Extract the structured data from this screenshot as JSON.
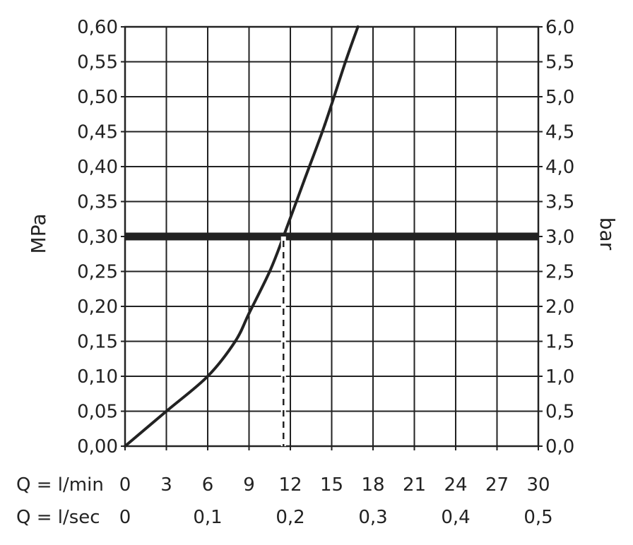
{
  "chart_data": {
    "type": "line",
    "ylabel_left": "MPa",
    "ylabel_right": "bar",
    "ylim": [
      0,
      0.6
    ],
    "xlim": [
      0,
      30
    ],
    "grid": true,
    "y_ticks_left": [
      "0,00",
      "0,05",
      "0,10",
      "0,15",
      "0,20",
      "0,25",
      "0,30",
      "0,35",
      "0,40",
      "0,45",
      "0,50",
      "0,55",
      "0,60"
    ],
    "y_ticks_right": [
      "0,0",
      "0,5",
      "1,0",
      "1,5",
      "2,0",
      "2,5",
      "3,0",
      "3,5",
      "4,0",
      "4,5",
      "5,0",
      "5,5",
      "6,0"
    ],
    "x_rows": [
      {
        "label": "Q = l/min",
        "ticks": [
          {
            "x": 0,
            "text": "0"
          },
          {
            "x": 3,
            "text": "3"
          },
          {
            "x": 6,
            "text": "6"
          },
          {
            "x": 9,
            "text": "9"
          },
          {
            "x": 12,
            "text": "12"
          },
          {
            "x": 15,
            "text": "15"
          },
          {
            "x": 18,
            "text": "18"
          },
          {
            "x": 21,
            "text": "21"
          },
          {
            "x": 24,
            "text": "24"
          },
          {
            "x": 27,
            "text": "27"
          },
          {
            "x": 30,
            "text": "30"
          }
        ]
      },
      {
        "label": "Q = l/sec",
        "ticks": [
          {
            "x": 0,
            "text": "0"
          },
          {
            "x": 6,
            "text": "0,1"
          },
          {
            "x": 12,
            "text": "0,2"
          },
          {
            "x": 18,
            "text": "0,3"
          },
          {
            "x": 24,
            "text": "0,4"
          },
          {
            "x": 30,
            "text": "0,5"
          }
        ]
      }
    ],
    "series": [
      {
        "x": [
          0,
          3,
          6,
          8,
          9,
          10.5,
          11.5,
          13,
          14.5,
          16,
          16.9
        ],
        "y": [
          0,
          0.05,
          0.1,
          0.15,
          0.19,
          0.25,
          0.3,
          0.38,
          0.46,
          0.55,
          0.6
        ]
      }
    ],
    "reference_line_y": 0.3,
    "reference_drop_x": 11.5
  }
}
